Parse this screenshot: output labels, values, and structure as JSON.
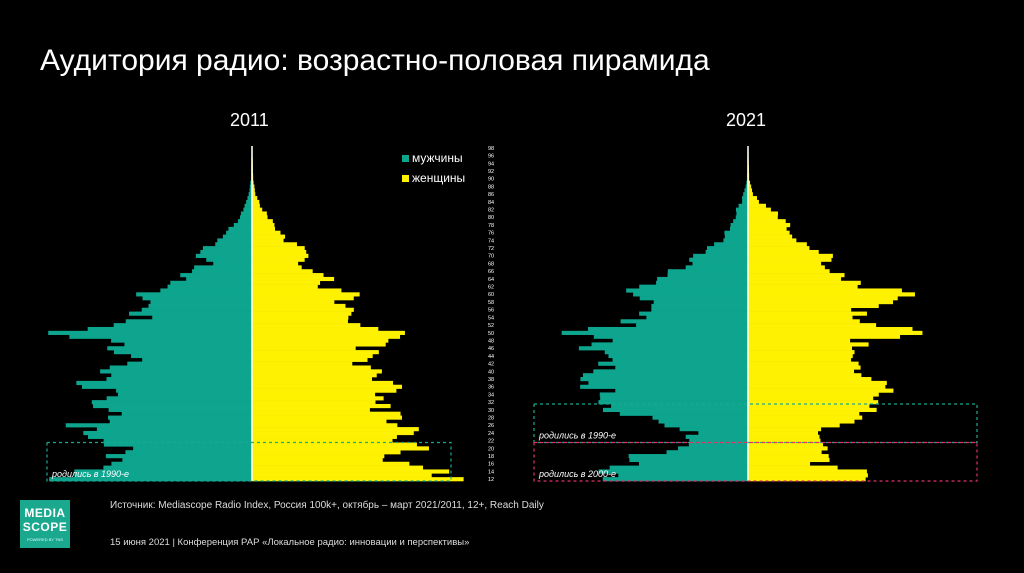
{
  "title": "Аудитория радио: возрастно-половая пирамида",
  "legend": {
    "men": "мужчины",
    "women": "женщины"
  },
  "colors": {
    "men": "#0ea58f",
    "women": "#fff200",
    "box_1990": "#1aa98f",
    "box_2000": "#e0306a",
    "background": "#000000"
  },
  "source": "Источник: Mediascope Radio Index, Россия 100k+, октябрь – март 2021/2011, 12+, Reach Daily",
  "footer": "15 июня 2021 | Конференция РАР «Локальное радио: инновации и перспективы»",
  "logo": {
    "line1": "MEDIA",
    "line2": "SCOPE",
    "tagline": "POWERED BY TNS"
  },
  "chart_data": {
    "type": "bar",
    "orientation": "population-pyramid",
    "age_min": 12,
    "age_max": 98,
    "age_tick_labels": [
      "98",
      "96",
      "94",
      "92",
      "90",
      "88",
      "86",
      "84",
      "82",
      "80",
      "78",
      "76",
      "74",
      "72",
      "70",
      "68",
      "66",
      "64",
      "62",
      "60",
      "58",
      "56",
      "54",
      "52",
      "50",
      "48",
      "46",
      "44",
      "42",
      "40",
      "38",
      "36",
      "34",
      "32",
      "30",
      "28",
      "26",
      "24",
      "22",
      "20",
      "18",
      "16",
      "14",
      "12"
    ],
    "value_scale": "relative",
    "pyramids": [
      {
        "year": "2011",
        "men_profile": [
          [
            12,
            1.8
          ],
          [
            14,
            1.5
          ],
          [
            16,
            1.3
          ],
          [
            18,
            1.2
          ],
          [
            20,
            1.0
          ],
          [
            22,
            1.5
          ],
          [
            24,
            1.4
          ],
          [
            26,
            1.6
          ],
          [
            28,
            1.2
          ],
          [
            30,
            1.35
          ],
          [
            32,
            1.5
          ],
          [
            34,
            1.2
          ],
          [
            36,
            1.5
          ],
          [
            38,
            1.4
          ],
          [
            40,
            1.3
          ],
          [
            42,
            1.1
          ],
          [
            44,
            1.1
          ],
          [
            46,
            1.25
          ],
          [
            48,
            1.3
          ],
          [
            50,
            1.7
          ],
          [
            52,
            1.3
          ],
          [
            54,
            1.0
          ],
          [
            56,
            1.05
          ],
          [
            58,
            0.9
          ],
          [
            60,
            1.05
          ],
          [
            62,
            0.7
          ],
          [
            64,
            0.65
          ],
          [
            66,
            0.6
          ],
          [
            68,
            0.35
          ],
          [
            70,
            0.5
          ],
          [
            72,
            0.45
          ],
          [
            74,
            0.3
          ],
          [
            76,
            0.25
          ],
          [
            78,
            0.15
          ],
          [
            80,
            0.12
          ],
          [
            82,
            0.08
          ],
          [
            84,
            0.05
          ],
          [
            86,
            0.03
          ],
          [
            88,
            0.02
          ],
          [
            90,
            0.01
          ],
          [
            98,
            0.005
          ]
        ],
        "women_profile": [
          [
            12,
            1.8
          ],
          [
            14,
            1.7
          ],
          [
            16,
            1.3
          ],
          [
            18,
            1.1
          ],
          [
            20,
            1.6
          ],
          [
            22,
            1.4
          ],
          [
            24,
            1.5
          ],
          [
            26,
            1.3
          ],
          [
            28,
            1.35
          ],
          [
            30,
            1.2
          ],
          [
            32,
            1.25
          ],
          [
            34,
            1.2
          ],
          [
            36,
            1.3
          ],
          [
            38,
            1.1
          ],
          [
            40,
            1.2
          ],
          [
            42,
            1.0
          ],
          [
            44,
            1.1
          ],
          [
            46,
            1.0
          ],
          [
            48,
            1.2
          ],
          [
            50,
            1.35
          ],
          [
            52,
            1.0
          ],
          [
            54,
            0.9
          ],
          [
            56,
            0.85
          ],
          [
            58,
            0.8
          ],
          [
            60,
            0.9
          ],
          [
            62,
            0.6
          ],
          [
            64,
            0.7
          ],
          [
            66,
            0.55
          ],
          [
            68,
            0.4
          ],
          [
            70,
            0.5
          ],
          [
            72,
            0.45
          ],
          [
            74,
            0.3
          ],
          [
            76,
            0.25
          ],
          [
            78,
            0.2
          ],
          [
            80,
            0.15
          ],
          [
            82,
            0.1
          ],
          [
            84,
            0.06
          ],
          [
            86,
            0.03
          ],
          [
            88,
            0.02
          ],
          [
            90,
            0.01
          ],
          [
            98,
            0.005
          ]
        ],
        "annotations": [
          {
            "label": "родились в 1990-е",
            "age_from": 12,
            "age_to": 21
          }
        ]
      },
      {
        "year": "2021",
        "men_profile": [
          [
            12,
            1.2
          ],
          [
            14,
            1.4
          ],
          [
            16,
            1.1
          ],
          [
            18,
            1.0
          ],
          [
            20,
            0.6
          ],
          [
            22,
            0.6
          ],
          [
            24,
            0.5
          ],
          [
            26,
            0.7
          ],
          [
            28,
            0.85
          ],
          [
            30,
            1.3
          ],
          [
            32,
            1.3
          ],
          [
            34,
            1.3
          ],
          [
            36,
            1.4
          ],
          [
            38,
            1.45
          ],
          [
            40,
            1.35
          ],
          [
            42,
            1.3
          ],
          [
            44,
            1.25
          ],
          [
            46,
            1.4
          ],
          [
            48,
            1.3
          ],
          [
            50,
            1.55
          ],
          [
            52,
            1.1
          ],
          [
            54,
            1.0
          ],
          [
            56,
            0.95
          ],
          [
            58,
            0.9
          ],
          [
            60,
            1.1
          ],
          [
            62,
            1.0
          ],
          [
            64,
            0.8
          ],
          [
            66,
            0.7
          ],
          [
            68,
            0.55
          ],
          [
            70,
            0.45
          ],
          [
            72,
            0.35
          ],
          [
            74,
            0.25
          ],
          [
            76,
            0.2
          ],
          [
            78,
            0.15
          ],
          [
            80,
            0.12
          ],
          [
            82,
            0.1
          ],
          [
            84,
            0.06
          ],
          [
            86,
            0.04
          ],
          [
            88,
            0.02
          ],
          [
            90,
            0.01
          ],
          [
            98,
            0.005
          ]
        ],
        "women_profile": [
          [
            12,
            1.1
          ],
          [
            14,
            1.0
          ],
          [
            16,
            0.6
          ],
          [
            18,
            0.75
          ],
          [
            20,
            0.75
          ],
          [
            22,
            0.65
          ],
          [
            24,
            0.6
          ],
          [
            26,
            0.8
          ],
          [
            28,
            1.0
          ],
          [
            30,
            1.1
          ],
          [
            32,
            1.2
          ],
          [
            34,
            1.25
          ],
          [
            36,
            1.2
          ],
          [
            38,
            1.15
          ],
          [
            40,
            1.05
          ],
          [
            42,
            0.95
          ],
          [
            44,
            0.9
          ],
          [
            46,
            1.0
          ],
          [
            48,
            1.0
          ],
          [
            50,
            1.7
          ],
          [
            52,
            1.15
          ],
          [
            54,
            1.05
          ],
          [
            56,
            1.05
          ],
          [
            58,
            1.3
          ],
          [
            60,
            1.45
          ],
          [
            62,
            1.1
          ],
          [
            64,
            0.95
          ],
          [
            66,
            0.8
          ],
          [
            68,
            0.7
          ],
          [
            70,
            0.7
          ],
          [
            72,
            0.55
          ],
          [
            74,
            0.45
          ],
          [
            76,
            0.4
          ],
          [
            78,
            0.38
          ],
          [
            80,
            0.3
          ],
          [
            82,
            0.2
          ],
          [
            84,
            0.1
          ],
          [
            86,
            0.05
          ],
          [
            88,
            0.03
          ],
          [
            90,
            0.01
          ],
          [
            98,
            0.005
          ]
        ],
        "annotations": [
          {
            "label": "родились в 1990-е",
            "age_from": 22,
            "age_to": 31
          },
          {
            "label": "родились в 2000-е",
            "age_from": 12,
            "age_to": 21
          }
        ]
      }
    ]
  }
}
